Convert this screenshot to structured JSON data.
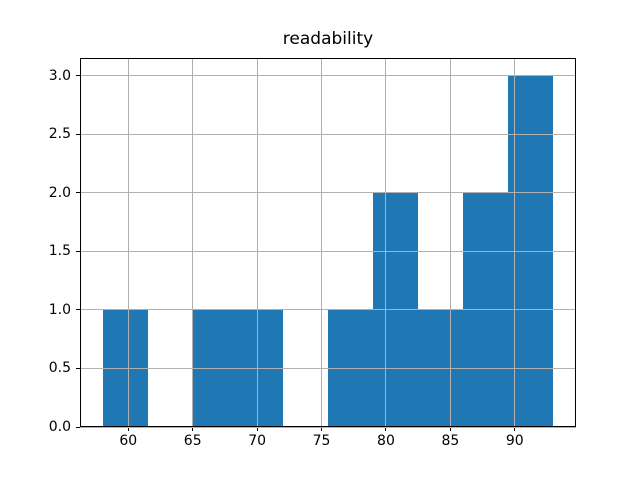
{
  "chart_data": {
    "type": "histogram",
    "title": "readability",
    "xlabel": "",
    "ylabel": "",
    "bin_edges": [
      58,
      61.5,
      65,
      68.5,
      72,
      75.5,
      79,
      82.5,
      86,
      89.5,
      93
    ],
    "counts": [
      1,
      0,
      1,
      1,
      0,
      1,
      2,
      1,
      2,
      3
    ],
    "xlim": [
      56.25,
      94.75
    ],
    "ylim": [
      0,
      3.15
    ],
    "xtick_values": [
      60,
      65,
      70,
      75,
      80,
      85,
      90
    ],
    "xtick_labels": [
      "60",
      "65",
      "70",
      "75",
      "80",
      "85",
      "90"
    ],
    "ytick_values": [
      0,
      0.5,
      1,
      1.5,
      2,
      2.5,
      3
    ],
    "ytick_labels": [
      "0.0",
      "0.5",
      "1.0",
      "1.5",
      "2.0",
      "2.5",
      "3.0"
    ],
    "grid": true,
    "legend": false,
    "bar_color": "#1f77b4",
    "grid_color": "#b0b0b0",
    "frame_color": "#000000",
    "tick_color": "#000000",
    "background_color": "#ffffff"
  }
}
